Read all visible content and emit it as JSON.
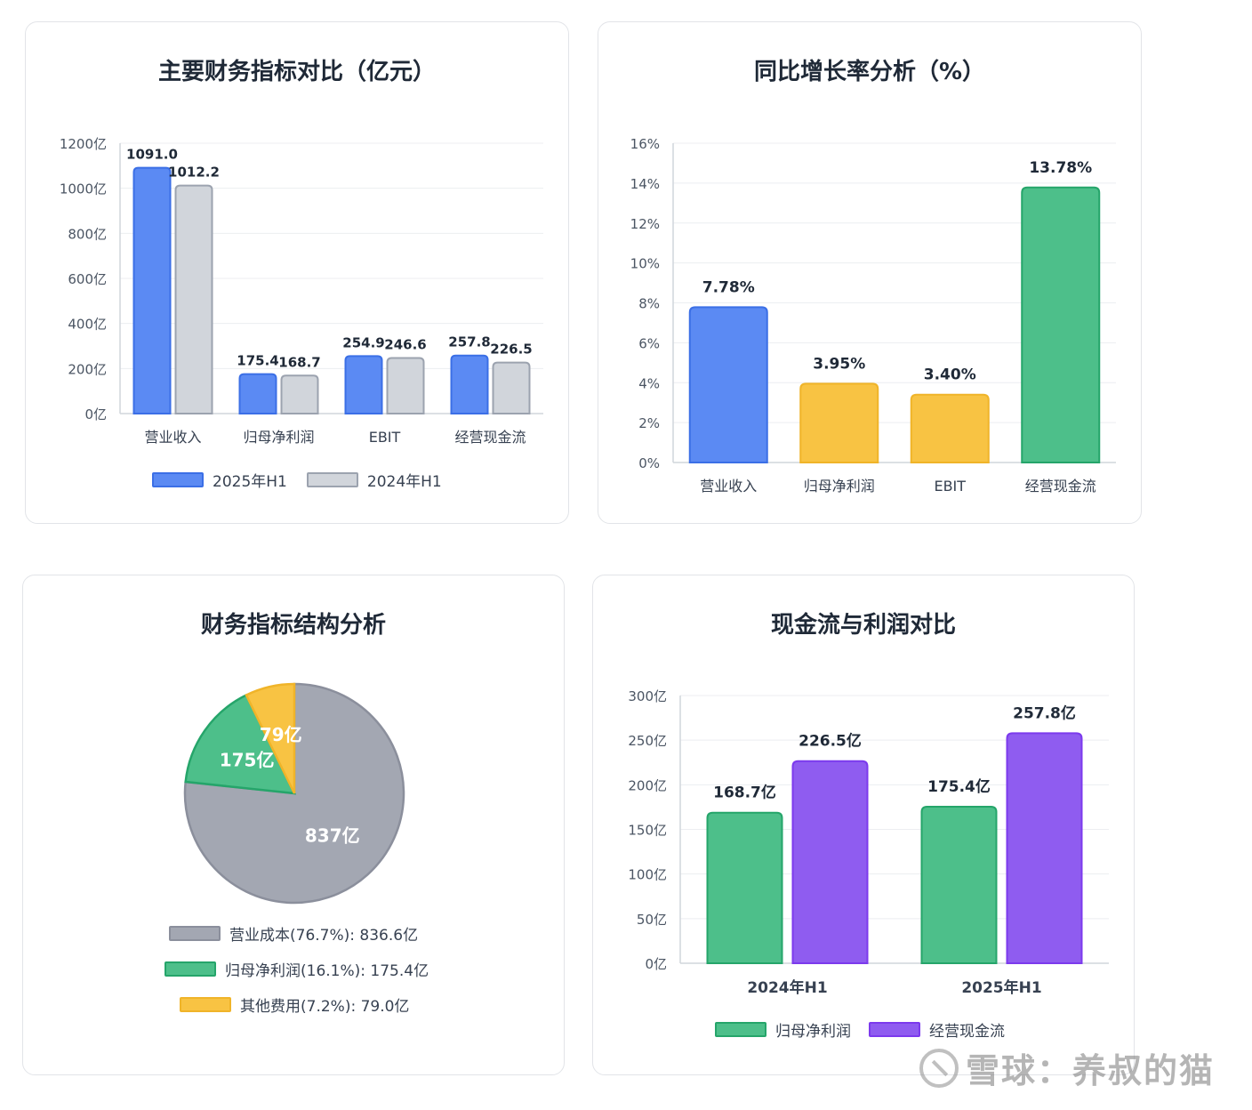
{
  "colors": {
    "blue": "#5b8af3",
    "blue_border": "#3b6fe6",
    "gray": "#d1d5db",
    "gray_border": "#9ca3af",
    "yellow": "#f8c343",
    "yellow_border": "#f0b429",
    "green": "#4dbf8a",
    "green_border": "#25a56a",
    "purple": "#8f5cf0",
    "purple_border": "#7c3aed",
    "pie_gray": "#a3a7b2",
    "pie_gray_border": "#8b8f9c"
  },
  "chart_data": [
    {
      "type": "bar",
      "title": "主要财务指标对比（亿元）",
      "categories": [
        "营业收入",
        "归母净利润",
        "EBIT",
        "经营现金流"
      ],
      "series": [
        {
          "name": "2025年H1",
          "values": [
            1091.0,
            175.4,
            254.9,
            257.8
          ],
          "color": "#5b8af3",
          "data_labels": [
            "1091.0",
            "175.4",
            "254.9",
            "257.8"
          ]
        },
        {
          "name": "2024年H1",
          "values": [
            1012.2,
            168.7,
            246.6,
            226.5
          ],
          "color": "#d1d5db",
          "data_labels": [
            "1012.2",
            "168.7",
            "246.6",
            "226.5"
          ]
        }
      ],
      "ylim": [
        0,
        1200
      ],
      "yticks": [
        0,
        200,
        400,
        600,
        800,
        1000,
        1200
      ],
      "ytick_labels": [
        "0亿",
        "200亿",
        "400亿",
        "600亿",
        "800亿",
        "1000亿",
        "1200亿"
      ],
      "grid": true,
      "legend": "bottom"
    },
    {
      "type": "bar",
      "title": "同比增长率分析（%）",
      "categories": [
        "营业收入",
        "归母净利润",
        "EBIT",
        "经营现金流"
      ],
      "values": [
        7.78,
        3.95,
        3.4,
        13.78
      ],
      "data_labels": [
        "7.78%",
        "3.95%",
        "3.40%",
        "13.78%"
      ],
      "bar_colors": [
        "#5b8af3",
        "#f8c343",
        "#f8c343",
        "#4dbf8a"
      ],
      "ylim": [
        0,
        16
      ],
      "yticks": [
        0,
        2,
        4,
        6,
        8,
        10,
        12,
        14,
        16
      ],
      "ytick_labels": [
        "0%",
        "2%",
        "4%",
        "6%",
        "8%",
        "10%",
        "12%",
        "14%",
        "16%"
      ],
      "grid": true
    },
    {
      "type": "pie",
      "title": "财务指标结构分析",
      "slices": [
        {
          "label": "营业成本",
          "value": 836.6,
          "percent": 76.7,
          "slice_label": "837亿",
          "legend": "营业成本(76.7%): 836.6亿",
          "color": "#a3a7b2"
        },
        {
          "label": "归母净利润",
          "value": 175.4,
          "percent": 16.1,
          "slice_label": "175亿",
          "legend": "归母净利润(16.1%): 175.4亿",
          "color": "#4dbf8a"
        },
        {
          "label": "其他费用",
          "value": 79.0,
          "percent": 7.2,
          "slice_label": "79亿",
          "legend": "其他费用(7.2%): 79.0亿",
          "color": "#f8c343"
        }
      ],
      "legend": "bottom"
    },
    {
      "type": "bar",
      "title": "现金流与利润对比",
      "categories": [
        "2024年H1",
        "2025年H1"
      ],
      "series": [
        {
          "name": "归母净利润",
          "values": [
            168.7,
            175.4
          ],
          "color": "#4dbf8a",
          "data_labels": [
            "168.7亿",
            "175.4亿"
          ]
        },
        {
          "name": "经营现金流",
          "values": [
            226.5,
            257.8
          ],
          "color": "#8f5cf0",
          "data_labels": [
            "226.5亿",
            "257.8亿"
          ]
        }
      ],
      "ylim": [
        0,
        300
      ],
      "yticks": [
        0,
        50,
        100,
        150,
        200,
        250,
        300
      ],
      "ytick_labels": [
        "0亿",
        "50亿",
        "100亿",
        "150亿",
        "200亿",
        "250亿",
        "300亿"
      ],
      "grid": true,
      "legend": "bottom"
    }
  ],
  "watermark": "雪球：养叔的猫"
}
